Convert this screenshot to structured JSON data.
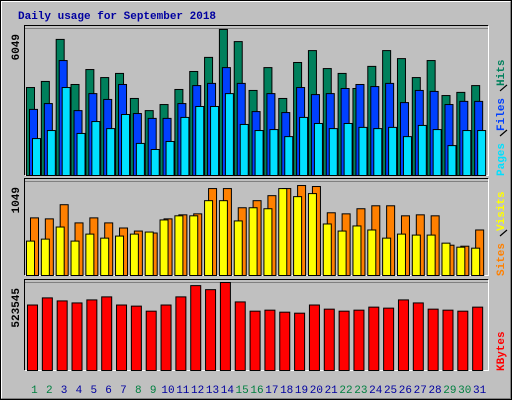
{
  "chart_data": [
    {
      "type": "bar",
      "title": "Daily usage for September 2018",
      "title_color": "#0000a0",
      "ylim": [
        0,
        6049
      ],
      "yticks": [
        6049
      ],
      "grid": true,
      "series": [
        {
          "name": "Hits",
          "color": "#00805c",
          "values": [
            3620,
            3870,
            5600,
            3745,
            4360,
            4030,
            4200,
            3170,
            2670,
            2920,
            3540,
            4280,
            4860,
            6010,
            5510,
            3500,
            4440,
            3170,
            4650,
            5140,
            4400,
            4200,
            3580,
            4490,
            5140,
            4810,
            4030,
            4730,
            3290,
            3420,
            3700
          ]
        },
        {
          "name": "Files",
          "color": "#0040ff",
          "values": [
            2720,
            2960,
            4730,
            2670,
            3370,
            3130,
            3745,
            2550,
            2350,
            2350,
            2960,
            3700,
            3790,
            4440,
            3790,
            2630,
            3370,
            2590,
            3620,
            3330,
            3370,
            3580,
            3745,
            3660,
            3790,
            3000,
            3500,
            3460,
            2920,
            3050,
            3050
          ]
        },
        {
          "name": "Pages",
          "color": "#00e0ff",
          "values": [
            1520,
            1850,
            3620,
            1730,
            2220,
            1930,
            2510,
            1320,
            1070,
            1400,
            2390,
            2840,
            2840,
            3370,
            2100,
            1850,
            1890,
            1600,
            2390,
            2140,
            1930,
            2140,
            1980,
            1930,
            1980,
            1600,
            2060,
            1890,
            1230,
            1850,
            1850
          ]
        }
      ]
    },
    {
      "type": "bar",
      "ylim": [
        0,
        1049
      ],
      "yticks": [
        1049
      ],
      "grid": true,
      "series": [
        {
          "name": "Sites",
          "color": "#ff8000",
          "values": [
            643,
            632,
            790,
            587,
            643,
            587,
            530,
            496,
            474,
            632,
            677,
            688,
            970,
            970,
            756,
            835,
            891,
            970,
            1004,
            993,
            700,
            688,
            745,
            778,
            778,
            666,
            677,
            666,
            338,
            327,
            508
          ]
        },
        {
          "name": "Visits",
          "color": "#ffff00",
          "values": [
            384,
            406,
            541,
            384,
            462,
            417,
            440,
            462,
            485,
            620,
            666,
            666,
            835,
            835,
            609,
            756,
            745,
            970,
            880,
            914,
            575,
            496,
            553,
            508,
            417,
            462,
            451,
            451,
            361,
            316,
            305
          ]
        }
      ]
    },
    {
      "type": "bar",
      "ylim": [
        0,
        523545
      ],
      "yticks": [
        523545
      ],
      "grid": true,
      "categories": [
        1,
        2,
        3,
        4,
        5,
        6,
        7,
        8,
        9,
        10,
        11,
        12,
        13,
        14,
        15,
        16,
        17,
        18,
        19,
        20,
        21,
        22,
        23,
        24,
        25,
        26,
        27,
        28,
        29,
        30,
        31
      ],
      "category_colors": [
        "#008040",
        "#008040",
        "#0000a0",
        "#0000a0",
        "#0000a0",
        "#0000a0",
        "#0000a0",
        "#008040",
        "#008040",
        "#0000a0",
        "#0000a0",
        "#0000a0",
        "#0000a0",
        "#0000a0",
        "#008040",
        "#008040",
        "#0000a0",
        "#0000a0",
        "#0000a0",
        "#0000a0",
        "#0000a0",
        "#008040",
        "#008040",
        "#0000a0",
        "#0000a0",
        "#0000a0",
        "#0000a0",
        "#0000a0",
        "#008040",
        "#008040",
        "#0000a0"
      ],
      "series": [
        {
          "name": "KBytes",
          "color": "#ff0000",
          "values": [
            389600,
            432000,
            414000,
            402000,
            420000,
            438000,
            389600,
            383000,
            353000,
            389600,
            438000,
            505000,
            481000,
            523545,
            408000,
            353000,
            359000,
            347000,
            341000,
            389600,
            365000,
            353000,
            359000,
            377000,
            371000,
            420000,
            402000,
            365000,
            359000,
            353000,
            377000
          ]
        }
      ]
    }
  ]
}
